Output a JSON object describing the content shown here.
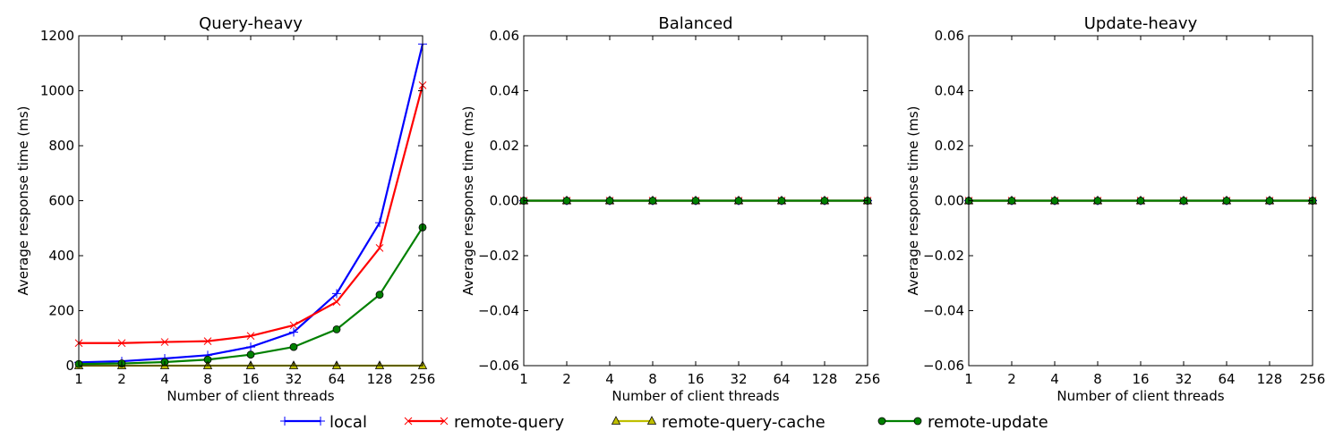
{
  "chart_data": [
    {
      "type": "line",
      "title": "Query-heavy",
      "xlabel": "Number of client threads",
      "ylabel": "Average response time (ms)",
      "x": [
        1,
        2,
        4,
        8,
        16,
        32,
        64,
        128,
        256
      ],
      "x_scale": "log2",
      "ylim": [
        0,
        1200
      ],
      "yticks": [
        "0",
        "200",
        "400",
        "600",
        "800",
        "1000",
        "1200"
      ],
      "grid": false,
      "series": [
        {
          "name": "local",
          "color": "#0000ff",
          "marker": "plus",
          "values": [
            12,
            16,
            26,
            38,
            68,
            122,
            262,
            520,
            1170
          ]
        },
        {
          "name": "remote-query",
          "color": "#ff0000",
          "marker": "x",
          "values": [
            82,
            82,
            86,
            89,
            108,
            147,
            232,
            428,
            1020
          ]
        },
        {
          "name": "remote-query-cache",
          "color": "#bfbf00",
          "marker": "triangle",
          "values": [
            0,
            0,
            0,
            0,
            0,
            0,
            0,
            0,
            0
          ]
        },
        {
          "name": "remote-update",
          "color": "#008000",
          "marker": "circle",
          "values": [
            6,
            8,
            13,
            22,
            40,
            68,
            132,
            258,
            503
          ]
        }
      ]
    },
    {
      "type": "line",
      "title": "Balanced",
      "xlabel": "Number of client threads",
      "ylabel": "Average response time (ms)",
      "x": [
        1,
        2,
        4,
        8,
        16,
        32,
        64,
        128,
        256
      ],
      "x_scale": "log2",
      "ylim": [
        -0.06,
        0.06
      ],
      "yticks": [
        "−0.06",
        "−0.04",
        "−0.02",
        "0.00",
        "0.02",
        "0.04",
        "0.06"
      ],
      "grid": false,
      "series": [
        {
          "name": "local",
          "color": "#0000ff",
          "marker": "plus",
          "values": [
            0,
            0,
            0,
            0,
            0,
            0,
            0,
            0,
            0
          ]
        },
        {
          "name": "remote-query",
          "color": "#ff0000",
          "marker": "x",
          "values": [
            0,
            0,
            0,
            0,
            0,
            0,
            0,
            0,
            0
          ]
        },
        {
          "name": "remote-query-cache",
          "color": "#bfbf00",
          "marker": "triangle",
          "values": [
            0,
            0,
            0,
            0,
            0,
            0,
            0,
            0,
            0
          ]
        },
        {
          "name": "remote-update",
          "color": "#008000",
          "marker": "circle",
          "values": [
            0,
            0,
            0,
            0,
            0,
            0,
            0,
            0,
            0
          ]
        }
      ]
    },
    {
      "type": "line",
      "title": "Update-heavy",
      "xlabel": "Number of client threads",
      "ylabel": "Average response time (ms)",
      "x": [
        1,
        2,
        4,
        8,
        16,
        32,
        64,
        128,
        256
      ],
      "x_scale": "log2",
      "ylim": [
        -0.06,
        0.06
      ],
      "yticks": [
        "−0.06",
        "−0.04",
        "−0.02",
        "0.00",
        "0.02",
        "0.04",
        "0.06"
      ],
      "grid": false,
      "series": [
        {
          "name": "local",
          "color": "#0000ff",
          "marker": "plus",
          "values": [
            0,
            0,
            0,
            0,
            0,
            0,
            0,
            0,
            0
          ]
        },
        {
          "name": "remote-query",
          "color": "#ff0000",
          "marker": "x",
          "values": [
            0,
            0,
            0,
            0,
            0,
            0,
            0,
            0,
            0
          ]
        },
        {
          "name": "remote-query-cache",
          "color": "#bfbf00",
          "marker": "triangle",
          "values": [
            0,
            0,
            0,
            0,
            0,
            0,
            0,
            0,
            0
          ]
        },
        {
          "name": "remote-update",
          "color": "#008000",
          "marker": "circle",
          "values": [
            0,
            0,
            0,
            0,
            0,
            0,
            0,
            0,
            0
          ]
        }
      ]
    }
  ],
  "legend": {
    "placement": "bottom-center",
    "entries": [
      {
        "label": "local",
        "color": "#0000ff",
        "marker": "plus"
      },
      {
        "label": "remote-query",
        "color": "#ff0000",
        "marker": "x"
      },
      {
        "label": "remote-query-cache",
        "color": "#bfbf00",
        "marker": "triangle"
      },
      {
        "label": "remote-update",
        "color": "#008000",
        "marker": "circle"
      }
    ]
  }
}
